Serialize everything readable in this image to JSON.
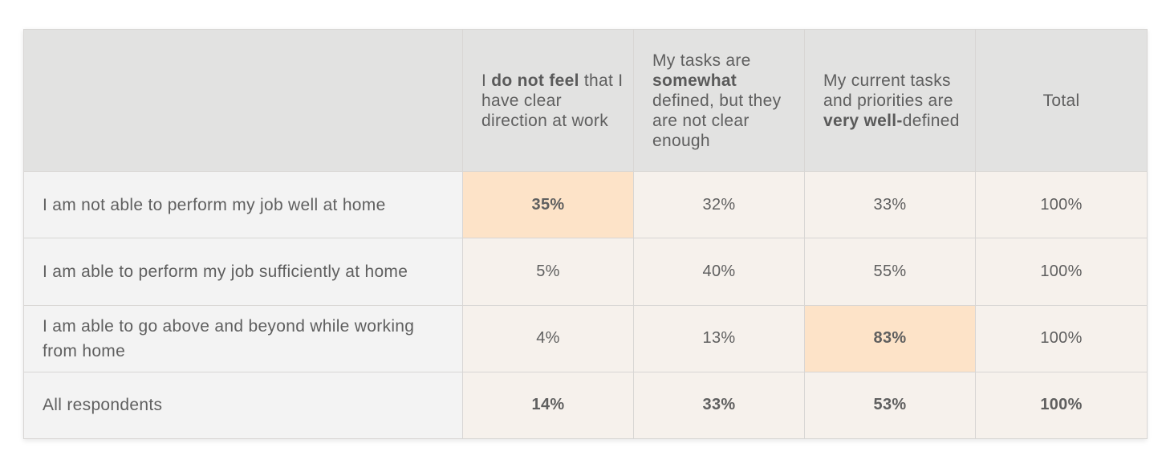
{
  "chart_data": {
    "type": "table",
    "columns": [
      {
        "parts": [
          {
            "t": "I ",
            "b": false
          },
          {
            "t": "do not feel",
            "b": true
          },
          {
            "t": " that I have clear direction at work",
            "b": false
          }
        ]
      },
      {
        "parts": [
          {
            "t": "My tasks are ",
            "b": false
          },
          {
            "t": "somewhat",
            "b": true
          },
          {
            "t": " defined, but they are not clear enough",
            "b": false
          }
        ]
      },
      {
        "parts": [
          {
            "t": "My current tasks and priorities are ",
            "b": false
          },
          {
            "t": "very well-",
            "b": true
          },
          {
            "t": "defined",
            "b": false
          }
        ]
      },
      {
        "parts": [
          {
            "t": "Total",
            "b": false
          }
        ]
      }
    ],
    "rows": [
      {
        "label": "I am not able to perform my job well at home",
        "values": [
          "35%",
          "32%",
          "33%",
          "100%"
        ],
        "highlight": [
          true,
          false,
          false,
          false
        ]
      },
      {
        "label": "I am able to perform my job sufficiently at home",
        "values": [
          "5%",
          "40%",
          "55%",
          "100%"
        ],
        "highlight": [
          false,
          false,
          false,
          false
        ]
      },
      {
        "label": "I am able to go above and beyond while working from home",
        "values": [
          "4%",
          "13%",
          "83%",
          "100%"
        ],
        "highlight": [
          false,
          false,
          true,
          false
        ]
      },
      {
        "label": "All respondents",
        "values": [
          "14%",
          "33%",
          "53%",
          "100%"
        ],
        "highlight": [
          false,
          false,
          false,
          false
        ],
        "is_total": true
      }
    ]
  },
  "colors": {
    "header_bg": "#e2e2e1",
    "label_bg": "#f3f3f3",
    "cell_bg": "#f6f1ec",
    "highlight_bg": "#fde3c8",
    "text": "#5f5f5f"
  }
}
